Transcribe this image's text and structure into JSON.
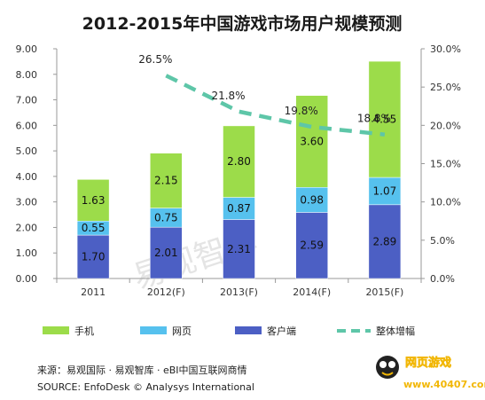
{
  "chart_data": {
    "type": "bar",
    "stacked": true,
    "title": "2012-2015年中国游戏市场用户规模预测",
    "categories": [
      "2011",
      "2012(F)",
      "2013(F)",
      "2014(F)",
      "2015(F)"
    ],
    "series": [
      {
        "name": "客户端",
        "values": [
          1.7,
          2.01,
          2.31,
          2.59,
          2.89
        ],
        "color": "#4c5fc4"
      },
      {
        "name": "网页",
        "values": [
          0.55,
          0.75,
          0.87,
          0.98,
          1.07
        ],
        "color": "#56c1ee"
      },
      {
        "name": "手机",
        "values": [
          1.63,
          2.15,
          2.8,
          3.6,
          4.55
        ],
        "color": "#9cdc4a"
      }
    ],
    "value_labels": {
      "客户端": [
        "1.70",
        "2.01",
        "2.31",
        "2.59",
        "2.89"
      ],
      "网页": [
        "0.55",
        "0.75",
        "0.87",
        "0.98",
        "1.07"
      ],
      "手机": [
        "1.63",
        "2.15",
        "2.80",
        "3.60",
        "4.55"
      ]
    },
    "line_series": {
      "name": "整体增幅",
      "axis": "right",
      "color": "#5ec6a8",
      "x": [
        "2012(F)",
        "2013(F)",
        "2014(F)",
        "2015(F)"
      ],
      "values": [
        26.5,
        21.8,
        19.8,
        18.8
      ],
      "labels": [
        "26.5%",
        "21.8%",
        "19.8%",
        "18.8%"
      ]
    },
    "y_left": {
      "ylim": [
        0,
        9
      ],
      "ticks": [
        "0.00",
        "1.00",
        "2.00",
        "3.00",
        "4.00",
        "5.00",
        "6.00",
        "7.00",
        "8.00",
        "9.00"
      ]
    },
    "y_right": {
      "ylim": [
        0,
        30
      ],
      "ticks": [
        "0.0%",
        "5.0%",
        "10.0%",
        "15.0%",
        "20.0%",
        "25.0%",
        "30.0%"
      ]
    },
    "legend": {
      "position": "bottom",
      "items": [
        {
          "label": "手机",
          "kind": "bar",
          "color": "#9cdc4a"
        },
        {
          "label": "网页",
          "kind": "bar",
          "color": "#56c1ee"
        },
        {
          "label": "客户端",
          "kind": "bar",
          "color": "#4c5fc4"
        },
        {
          "label": "整体增幅",
          "kind": "dashed-line",
          "color": "#5ec6a8"
        }
      ]
    },
    "grid": false
  },
  "source": {
    "line1": "来源：易观国际 · 易观智库 · eBI中国互联网商情",
    "line2": "SOURCE: EnfoDesk © Analysys International"
  },
  "watermark": "易观智库",
  "logo": {
    "name": "网页游戏",
    "url": "www.40407.com"
  }
}
